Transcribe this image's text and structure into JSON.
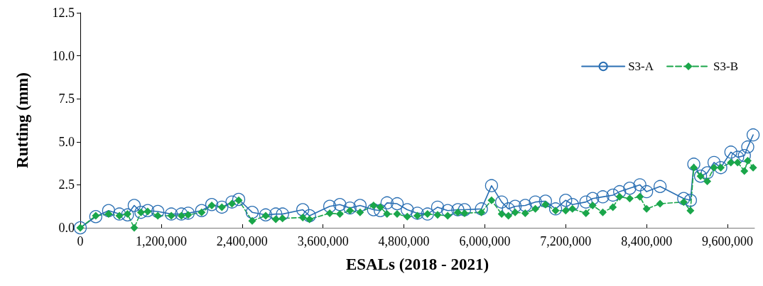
{
  "chart_data": {
    "type": "line",
    "xlabel": "ESALs (2018 - 2021)",
    "ylabel": "Rutting (mm)",
    "xlim": [
      0,
      10000000
    ],
    "xticks": [
      {
        "value": 0,
        "label": "0"
      },
      {
        "value": 1200000,
        "label": "1,200,000"
      },
      {
        "value": 2400000,
        "label": "2,400,000"
      },
      {
        "value": 3600000,
        "label": "3,600,000"
      },
      {
        "value": 4800000,
        "label": "4,800,000"
      },
      {
        "value": 6000000,
        "label": "6,000,000"
      },
      {
        "value": 7200000,
        "label": "7,200,000"
      },
      {
        "value": 8400000,
        "label": "8,400,000"
      },
      {
        "value": 9600000,
        "label": "9,600,000"
      }
    ],
    "ylim": [
      0,
      12.5
    ],
    "yticks": [
      {
        "value": 0,
        "label": "0.0"
      },
      {
        "value": 2.5,
        "label": "2.5"
      },
      {
        "value": 5,
        "label": "5.0"
      },
      {
        "value": 7.5,
        "label": "7.5"
      },
      {
        "value": 10,
        "label": "10.0"
      },
      {
        "value": 12.5,
        "label": "12.5"
      }
    ],
    "grid": false,
    "legend": "top right",
    "x": [
      0,
      230000,
      420000,
      580000,
      700000,
      800000,
      900000,
      1000000,
      1150000,
      1350000,
      1500000,
      1600000,
      1800000,
      1950000,
      2100000,
      2250000,
      2350000,
      2550000,
      2750000,
      2900000,
      3000000,
      3300000,
      3400000,
      3700000,
      3850000,
      4000000,
      4150000,
      4350000,
      4450000,
      4550000,
      4700000,
      4850000,
      5000000,
      5150000,
      5300000,
      5450000,
      5600000,
      5700000,
      5950000,
      6100000,
      6250000,
      6350000,
      6450000,
      6600000,
      6750000,
      6900000,
      7050000,
      7200000,
      7300000,
      7500000,
      7600000,
      7750000,
      7900000,
      8000000,
      8150000,
      8300000,
      8400000,
      8600000,
      8950000,
      9050000,
      9100000,
      9200000,
      9300000,
      9400000,
      9500000,
      9650000,
      9750000,
      9850000,
      9900000,
      9980000
    ],
    "series": [
      {
        "name": "S3-A",
        "color": "#2a6fb3",
        "marker": "circle",
        "line_style": "solid",
        "values": [
          0,
          0.65,
          1.0,
          0.8,
          0.75,
          1.3,
          0.9,
          1.0,
          0.95,
          0.8,
          0.8,
          0.85,
          1.0,
          1.35,
          1.2,
          1.5,
          1.65,
          0.9,
          0.75,
          0.8,
          0.8,
          1.05,
          0.7,
          1.25,
          1.35,
          1.15,
          1.3,
          1.05,
          1.0,
          1.45,
          1.4,
          1.05,
          0.85,
          0.8,
          1.2,
          1.0,
          1.05,
          1.05,
          1.1,
          2.45,
          1.5,
          1.1,
          1.25,
          1.3,
          1.5,
          1.55,
          1.1,
          1.6,
          1.35,
          1.5,
          1.7,
          1.8,
          1.9,
          2.1,
          2.3,
          2.5,
          2.1,
          2.4,
          1.7,
          1.6,
          3.7,
          3.0,
          3.2,
          3.8,
          3.5,
          4.4,
          4.1,
          4.2,
          4.7,
          5.4
        ]
      },
      {
        "name": "S3-B",
        "color": "#1aa64a",
        "marker": "diamond",
        "line_style": "dashed",
        "values": [
          0,
          0.7,
          0.8,
          0.7,
          0.8,
          0.0,
          0.9,
          0.95,
          0.7,
          0.7,
          0.7,
          0.75,
          0.9,
          1.3,
          1.2,
          1.4,
          1.6,
          0.4,
          0.7,
          0.5,
          0.55,
          0.6,
          0.5,
          0.85,
          0.8,
          1.0,
          0.9,
          1.3,
          1.2,
          0.8,
          0.8,
          0.65,
          0.7,
          0.8,
          0.75,
          0.7,
          0.9,
          0.85,
          0.9,
          1.6,
          0.8,
          0.7,
          0.9,
          0.85,
          1.1,
          1.35,
          1.0,
          1.0,
          1.1,
          0.85,
          1.3,
          0.9,
          1.2,
          1.8,
          1.7,
          1.8,
          1.1,
          1.4,
          1.5,
          1.0,
          3.5,
          3.0,
          2.7,
          3.5,
          3.5,
          3.8,
          3.8,
          3.3,
          3.9,
          3.5
        ]
      }
    ]
  }
}
